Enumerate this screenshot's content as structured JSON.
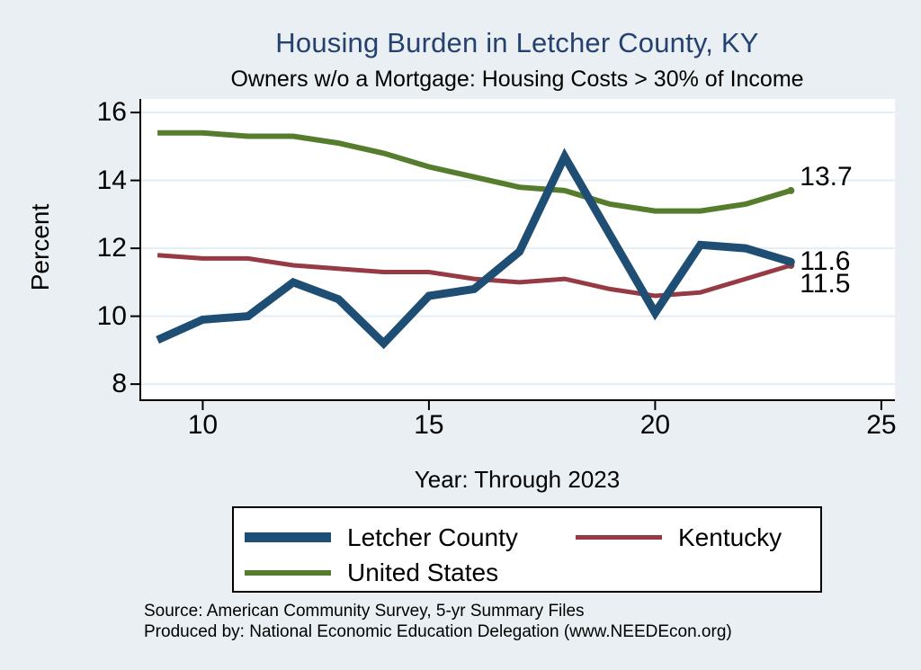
{
  "colors": {
    "background": "#e9eff2",
    "plot_background": "#ffffff",
    "gridline": "#e3edf4",
    "axis": "#000000",
    "title": "#24416f",
    "letcher_blue": "#1f4e74",
    "kentucky_maroon": "#963a44",
    "us_olive": "#567d2d"
  },
  "chart_data": {
    "type": "line",
    "title": "Housing Burden in Letcher County, KY",
    "subtitle": "Owners w/o a Mortgage: Housing Costs > 30% of Income",
    "ylabel": "Percent",
    "xlabel": "Year: Through 2023",
    "years": [
      2009,
      2010,
      2011,
      2012,
      2013,
      2014,
      2015,
      2016,
      2017,
      2018,
      2019,
      2020,
      2021,
      2022,
      2023
    ],
    "x": [
      9,
      10,
      11,
      12,
      13,
      14,
      15,
      16,
      17,
      18,
      19,
      20,
      21,
      22,
      23
    ],
    "series": [
      {
        "name": "United States",
        "color": "#567d2d",
        "width": 6,
        "values": [
          15.4,
          15.4,
          15.3,
          15.3,
          15.1,
          14.8,
          14.4,
          14.1,
          13.8,
          13.7,
          13.3,
          13.1,
          13.1,
          13.3,
          13.7
        ],
        "end_label": "13.7",
        "label_dy": -15
      },
      {
        "name": "Kentucky",
        "color": "#963a44",
        "width": 5,
        "values": [
          11.8,
          11.7,
          11.7,
          11.5,
          11.4,
          11.3,
          11.3,
          11.1,
          11.0,
          11.1,
          10.8,
          10.6,
          10.7,
          11.1,
          11.5
        ],
        "end_label": "11.5",
        "label_dy": 21
      },
      {
        "name": "Letcher County",
        "color": "#1f4e74",
        "width": 9,
        "values": [
          9.3,
          9.9,
          10.0,
          11.0,
          10.5,
          9.2,
          10.6,
          10.8,
          11.9,
          14.7,
          12.4,
          10.1,
          12.1,
          12.0,
          11.6
        ],
        "end_label": "11.6",
        "label_dy": 0
      }
    ],
    "legend_order": [
      "Letcher County",
      "Kentucky",
      "United States"
    ],
    "xticks": [
      10,
      15,
      20,
      25
    ],
    "yticks": [
      8,
      10,
      12,
      14,
      16
    ],
    "xlim": [
      8.6,
      25.3
    ],
    "ylim": [
      7.5,
      16.4
    ],
    "grid": true,
    "legend_position": "bottom"
  },
  "legend": {
    "item1": "Letcher County",
    "item2": "Kentucky",
    "item3": "United States"
  },
  "footer": {
    "source_line1": "Source: American Community Survey, 5-yr Summary Files",
    "source_line2": "Produced by: National Economic Education Delegation (www.NEEDEcon.org)"
  }
}
